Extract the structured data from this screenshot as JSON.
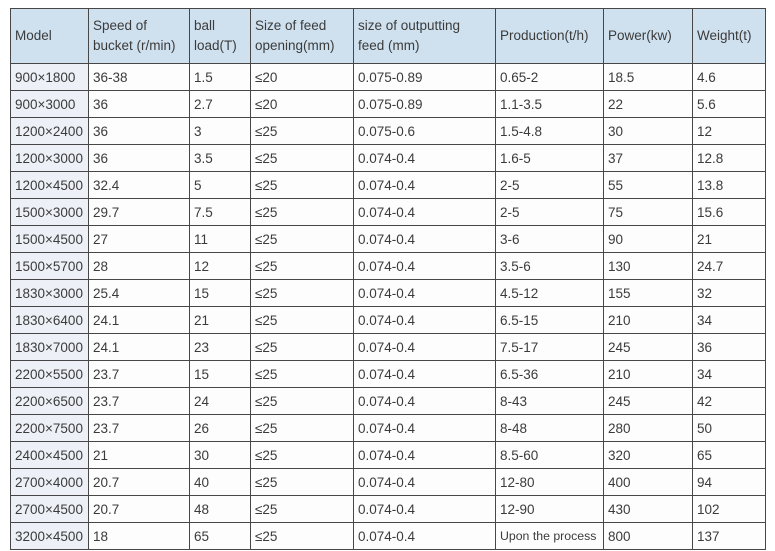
{
  "table": {
    "columns": [
      {
        "label": "Model"
      },
      {
        "label": "Speed of\nbucket (r/min)"
      },
      {
        "label": "ball\nload(T)"
      },
      {
        "label": "Size of feed\nopening(mm)"
      },
      {
        "label": "size of outputting\nfeed (mm)"
      },
      {
        "label": "Production(t/h)"
      },
      {
        "label": "Power(kw)"
      },
      {
        "label": "Weight(t)"
      }
    ],
    "rows": [
      [
        "900×1800",
        "36-38",
        "1.5",
        "≤20",
        "0.075-0.89",
        "0.65-2",
        "18.5",
        "4.6"
      ],
      [
        "900×3000",
        "36",
        "2.7",
        "≤20",
        "0.075-0.89",
        "1.1-3.5",
        "22",
        "5.6"
      ],
      [
        "1200×2400",
        "36",
        "3",
        "≤25",
        "0.075-0.6",
        "1.5-4.8",
        "30",
        "12"
      ],
      [
        "1200×3000",
        "36",
        "3.5",
        "≤25",
        "0.074-0.4",
        "1.6-5",
        "37",
        "12.8"
      ],
      [
        "1200×4500",
        "32.4",
        "5",
        "≤25",
        "0.074-0.4",
        "2-5",
        "55",
        "13.8"
      ],
      [
        "1500×3000",
        "29.7",
        "7.5",
        "≤25",
        "0.074-0.4",
        "2-5",
        "75",
        "15.6"
      ],
      [
        "1500×4500",
        "27",
        "11",
        "≤25",
        "0.074-0.4",
        "3-6",
        "90",
        "21"
      ],
      [
        "1500×5700",
        "28",
        "12",
        "≤25",
        "0.074-0.4",
        "3.5-6",
        "130",
        "24.7"
      ],
      [
        "1830×3000",
        "25.4",
        "15",
        "≤25",
        "0.074-0.4",
        "4.5-12",
        "155",
        "32"
      ],
      [
        "1830×6400",
        "24.1",
        "21",
        "≤25",
        "0.074-0.4",
        "6.5-15",
        "210",
        "34"
      ],
      [
        "1830×7000",
        "24.1",
        "23",
        "≤25",
        "0.074-0.4",
        "7.5-17",
        "245",
        "36"
      ],
      [
        "2200×5500",
        "23.7",
        "15",
        "≤25",
        "0.074-0.4",
        "6.5-36",
        "210",
        "34"
      ],
      [
        "2200×6500",
        "23.7",
        "24",
        "≤25",
        "0.074-0.4",
        "8-43",
        "245",
        "42"
      ],
      [
        "2200×7500",
        "23.7",
        "26",
        "≤25",
        "0.074-0.4",
        "8-48",
        "280",
        "50"
      ],
      [
        "2400×4500",
        "21",
        "30",
        "≤25",
        "0.074-0.4",
        "8.5-60",
        "320",
        "65"
      ],
      [
        "2700×4000",
        "20.7",
        "40",
        "≤25",
        "0.074-0.4",
        "12-80",
        "400",
        "94"
      ],
      [
        "2700×4500",
        "20.7",
        "48",
        "≤25",
        "0.074-0.4",
        "12-90",
        "430",
        "102"
      ],
      [
        "3200×4500",
        "18",
        "65",
        "≤25",
        "0.074-0.4",
        "Upon the process",
        "800",
        "137"
      ]
    ]
  },
  "colors": {
    "header_bg": "#cfe1ef",
    "first_col_bg": "#edf1f7",
    "border": "#474747",
    "text": "#3b3b3b"
  }
}
